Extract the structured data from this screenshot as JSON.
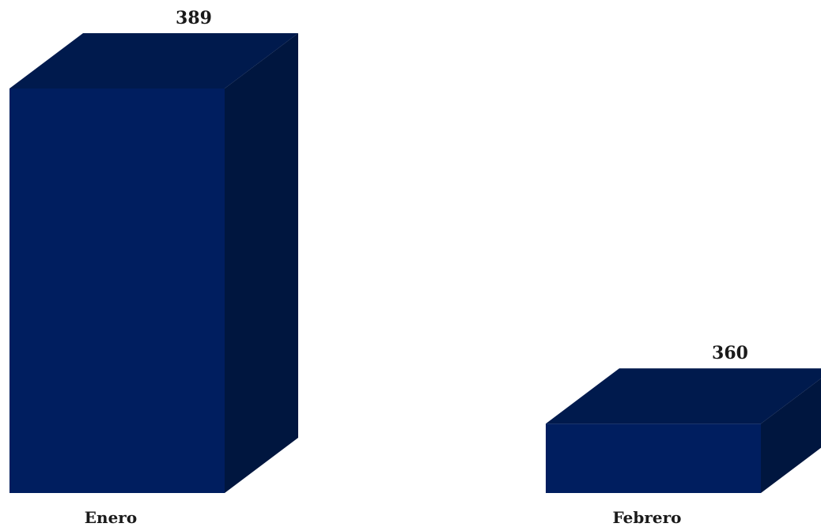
{
  "chart_data": {
    "type": "bar",
    "style": "3d-box",
    "categories": [
      "Enero",
      "Febrero"
    ],
    "values": [
      389,
      360
    ],
    "data_labels": [
      "389",
      "360"
    ],
    "ylim": [
      354,
      389
    ],
    "grid": false,
    "legend": "none",
    "colors": {
      "front": "#001e5f",
      "top": "#001a4d",
      "side": "#00163f"
    }
  }
}
